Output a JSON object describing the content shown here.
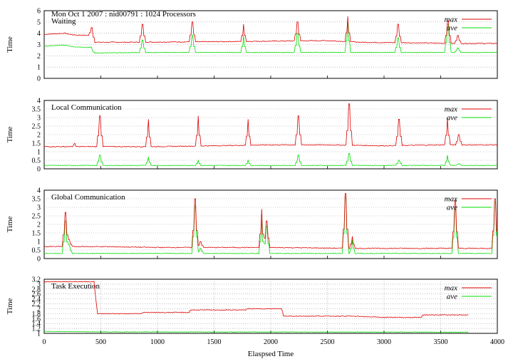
{
  "page_title": "Mon Oct 1 2007 : nid00791 : 1024 Processors",
  "x_axis_label": "Elaspsed Time",
  "x_ticks": [
    0,
    500,
    1000,
    1500,
    2000,
    2500,
    3000,
    3500,
    4000
  ],
  "colors": {
    "max": "#dd0000",
    "ave": "#00dd00",
    "grid": "#999999"
  },
  "chart_data": [
    {
      "type": "line",
      "title": "Waiting",
      "ylabel": "Time",
      "xlim": [
        0,
        4000
      ],
      "ylim": [
        0,
        6
      ],
      "yticks": [
        "0",
        "1",
        "2",
        "3",
        "4",
        "5",
        "6"
      ],
      "legend_position": "top-right",
      "base": [
        [
          0,
          3.9
        ],
        [
          180,
          4.0
        ],
        [
          260,
          3.85
        ],
        [
          420,
          3.8
        ],
        [
          430,
          3.2
        ],
        [
          700,
          3.2
        ],
        [
          1500,
          3.25
        ],
        [
          2000,
          3.3
        ],
        [
          2500,
          3.35
        ],
        [
          2800,
          3.2
        ],
        [
          3300,
          3.15
        ],
        [
          3600,
          3.1
        ],
        [
          4000,
          3.1
        ]
      ],
      "ave_base": [
        [
          0,
          2.85
        ],
        [
          180,
          2.95
        ],
        [
          260,
          2.8
        ],
        [
          420,
          2.75
        ],
        [
          430,
          2.25
        ],
        [
          1000,
          2.3
        ],
        [
          2000,
          2.3
        ],
        [
          3000,
          2.3
        ],
        [
          4000,
          2.3
        ]
      ],
      "spikes": [
        [
          420,
          4.5
        ],
        [
          865,
          4.8
        ],
        [
          1310,
          5.0
        ],
        [
          1760,
          4.8
        ],
        [
          2235,
          5.0
        ],
        [
          2680,
          5.5
        ],
        [
          3125,
          4.8
        ],
        [
          3565,
          5.1
        ],
        [
          3650,
          3.8
        ]
      ],
      "ave_spikes": [
        [
          420,
          2.5
        ],
        [
          865,
          3.4
        ],
        [
          1310,
          3.8
        ],
        [
          1760,
          3.8
        ],
        [
          2235,
          4.0
        ],
        [
          2680,
          5.2
        ],
        [
          3125,
          3.6
        ],
        [
          3565,
          4.8
        ],
        [
          3650,
          2.7
        ]
      ],
      "series": [
        {
          "name": "max",
          "color": "#dd0000"
        },
        {
          "name": "ave",
          "color": "#00dd00"
        }
      ]
    },
    {
      "type": "line",
      "title": "Local Communication",
      "ylabel": "Time",
      "xlim": [
        0,
        4000
      ],
      "ylim": [
        0,
        4
      ],
      "yticks": [
        "0",
        "0.5",
        "1",
        "1.5",
        "2",
        "2.5",
        "3",
        "3.5",
        "4"
      ],
      "legend_position": "top-right",
      "base": [
        [
          0,
          1.3
        ],
        [
          250,
          1.3
        ],
        [
          270,
          1.5
        ],
        [
          280,
          1.3
        ],
        [
          1000,
          1.3
        ],
        [
          1500,
          1.35
        ],
        [
          2000,
          1.4
        ],
        [
          2500,
          1.4
        ],
        [
          3000,
          1.35
        ],
        [
          3500,
          1.4
        ],
        [
          4000,
          1.4
        ]
      ],
      "ave_base": [
        [
          0,
          0.2
        ],
        [
          2000,
          0.2
        ],
        [
          4000,
          0.2
        ]
      ],
      "spikes": [
        [
          490,
          3.1
        ],
        [
          920,
          2.9
        ],
        [
          1360,
          3.1
        ],
        [
          1800,
          2.9
        ],
        [
          2245,
          3.1
        ],
        [
          2690,
          3.8
        ],
        [
          3130,
          2.9
        ],
        [
          3560,
          3.0
        ],
        [
          3660,
          2.0
        ]
      ],
      "ave_spikes": [
        [
          490,
          0.8
        ],
        [
          920,
          0.7
        ],
        [
          1360,
          0.5
        ],
        [
          1800,
          0.5
        ],
        [
          2245,
          0.8
        ],
        [
          2690,
          0.9
        ],
        [
          3130,
          0.5
        ],
        [
          3560,
          0.8
        ],
        [
          3660,
          0.3
        ]
      ],
      "series": [
        {
          "name": "max",
          "color": "#dd0000"
        },
        {
          "name": "ave",
          "color": "#00dd00"
        }
      ]
    },
    {
      "type": "line",
      "title": "Global Communication",
      "ylabel": "Time",
      "xlim": [
        0,
        4000
      ],
      "ylim": [
        0,
        4
      ],
      "yticks": [
        "0",
        "0.5",
        "1",
        "1.5",
        "2",
        "2.5",
        "3",
        "3.5",
        "4"
      ],
      "legend_position": "top-right",
      "base": [
        [
          0,
          0.7
        ],
        [
          500,
          0.7
        ],
        [
          1000,
          0.65
        ],
        [
          2000,
          0.65
        ],
        [
          2700,
          0.6
        ],
        [
          3000,
          0.6
        ],
        [
          3600,
          0.6
        ],
        [
          4000,
          0.6
        ]
      ],
      "ave_base": [
        [
          0,
          0.3
        ],
        [
          4000,
          0.3
        ]
      ],
      "spikes": [
        [
          185,
          2.7
        ],
        [
          220,
          1.1
        ],
        [
          1335,
          3.5
        ],
        [
          1380,
          1.0
        ],
        [
          1920,
          2.9
        ],
        [
          1965,
          2.2
        ],
        [
          2660,
          3.8
        ],
        [
          2720,
          1.3
        ],
        [
          3630,
          3.4
        ],
        [
          3980,
          3.5
        ]
      ],
      "ave_spikes": [
        [
          185,
          2.2
        ],
        [
          220,
          0.8
        ],
        [
          1335,
          3.1
        ],
        [
          1380,
          0.6
        ],
        [
          1920,
          2.3
        ],
        [
          1965,
          1.9
        ],
        [
          2660,
          3.6
        ],
        [
          2720,
          1.1
        ],
        [
          3630,
          2.9
        ],
        [
          3980,
          3.3
        ]
      ],
      "series": [
        {
          "name": "max",
          "color": "#dd0000"
        },
        {
          "name": "ave",
          "color": "#00dd00"
        }
      ]
    },
    {
      "type": "line",
      "title": "Task Execution",
      "ylabel": "Time",
      "xlim": [
        0,
        4000
      ],
      "ylim": [
        1,
        3.2
      ],
      "yticks": [
        "1",
        "1.2",
        "1.4",
        "1.6",
        "1.8",
        "2",
        "2.2",
        "2.4",
        "2.6",
        "2.8",
        "3",
        "3.2"
      ],
      "legend_position": "top-right",
      "base": [
        [
          0,
          3.1
        ],
        [
          440,
          3.1
        ],
        [
          470,
          1.8
        ],
        [
          860,
          1.8
        ],
        [
          870,
          1.85
        ],
        [
          1280,
          1.85
        ],
        [
          1290,
          1.95
        ],
        [
          1780,
          1.95
        ],
        [
          1790,
          2.0
        ],
        [
          2100,
          2.0
        ],
        [
          2110,
          1.7
        ],
        [
          2700,
          1.7
        ],
        [
          3000,
          1.65
        ],
        [
          3330,
          1.65
        ],
        [
          3340,
          1.75
        ],
        [
          3750,
          1.75
        ]
      ],
      "ave_base": [
        [
          0,
          1.08
        ],
        [
          470,
          1.06
        ],
        [
          3750,
          1.05
        ]
      ],
      "spikes": [],
      "ave_spikes": [],
      "series": [
        {
          "name": "max",
          "color": "#dd0000"
        },
        {
          "name": "ave",
          "color": "#00dd00"
        }
      ]
    }
  ]
}
